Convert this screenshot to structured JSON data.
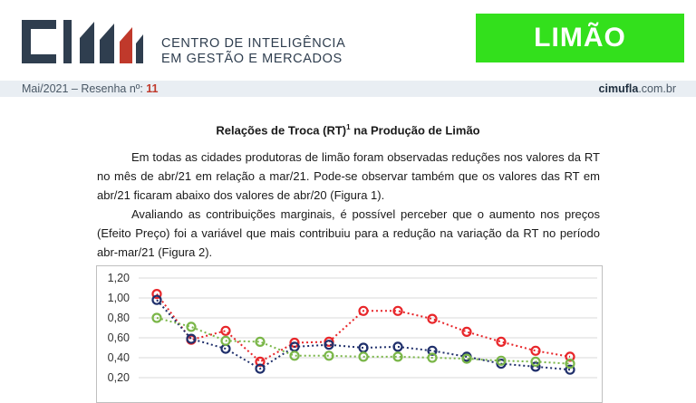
{
  "header": {
    "org_line1": "CENTRO DE INTELIGÊNCIA",
    "org_line2": "EM GESTÃO E MERCADOS",
    "product_badge": "LIMÃO",
    "colors": {
      "logo_dark": "#2f3e4f",
      "logo_red": "#c0392b",
      "badge_bg": "#33e01c"
    }
  },
  "meta": {
    "issue_text": "Mai/2021 – Resenha nº: ",
    "issue_number": "11",
    "site_bold": "cimufla",
    "site_rest": ".com.br"
  },
  "article": {
    "title_pre": "Relações de Troca (RT)",
    "title_sup": "1",
    "title_post": " na Produção de Limão",
    "paragraph1": "Em todas as cidades produtoras de limão foram observadas reduções nos valores da RT no mês de abr/21 em relação a mar/21. Pode-se observar também que os valores das RT em abr/21 ficaram abaixo dos valores de abr/20 (Figura 1).",
    "paragraph2": "Avaliando as contribuições marginais, é possível perceber que o aumento nos preços (Efeito Preço) foi a variável que mais contribuiu para a redução na variação da RT no período abr-mar/21 (Figura 2)."
  },
  "chart_data": {
    "type": "line",
    "y_ticks": [
      "1,20",
      "1,00",
      "0,80",
      "0,60",
      "0,40",
      "0,20"
    ],
    "ylim": [
      0.2,
      1.2
    ],
    "grid": true,
    "series": [
      {
        "color": "#e8262a",
        "values": [
          1.04,
          0.58,
          0.67,
          0.36,
          0.55,
          0.56,
          0.87,
          0.87,
          0.79,
          0.66,
          0.56,
          0.47,
          0.41
        ]
      },
      {
        "color": "#1f2f6b",
        "values": [
          0.98,
          0.59,
          0.49,
          0.29,
          0.51,
          0.53,
          0.5,
          0.51,
          0.47,
          0.41,
          0.34,
          0.31,
          0.28
        ]
      },
      {
        "color": "#7ab648",
        "values": [
          0.8,
          0.71,
          0.57,
          0.56,
          0.42,
          0.42,
          0.41,
          0.41,
          0.4,
          0.39,
          0.37,
          0.36,
          0.34
        ]
      }
    ]
  }
}
